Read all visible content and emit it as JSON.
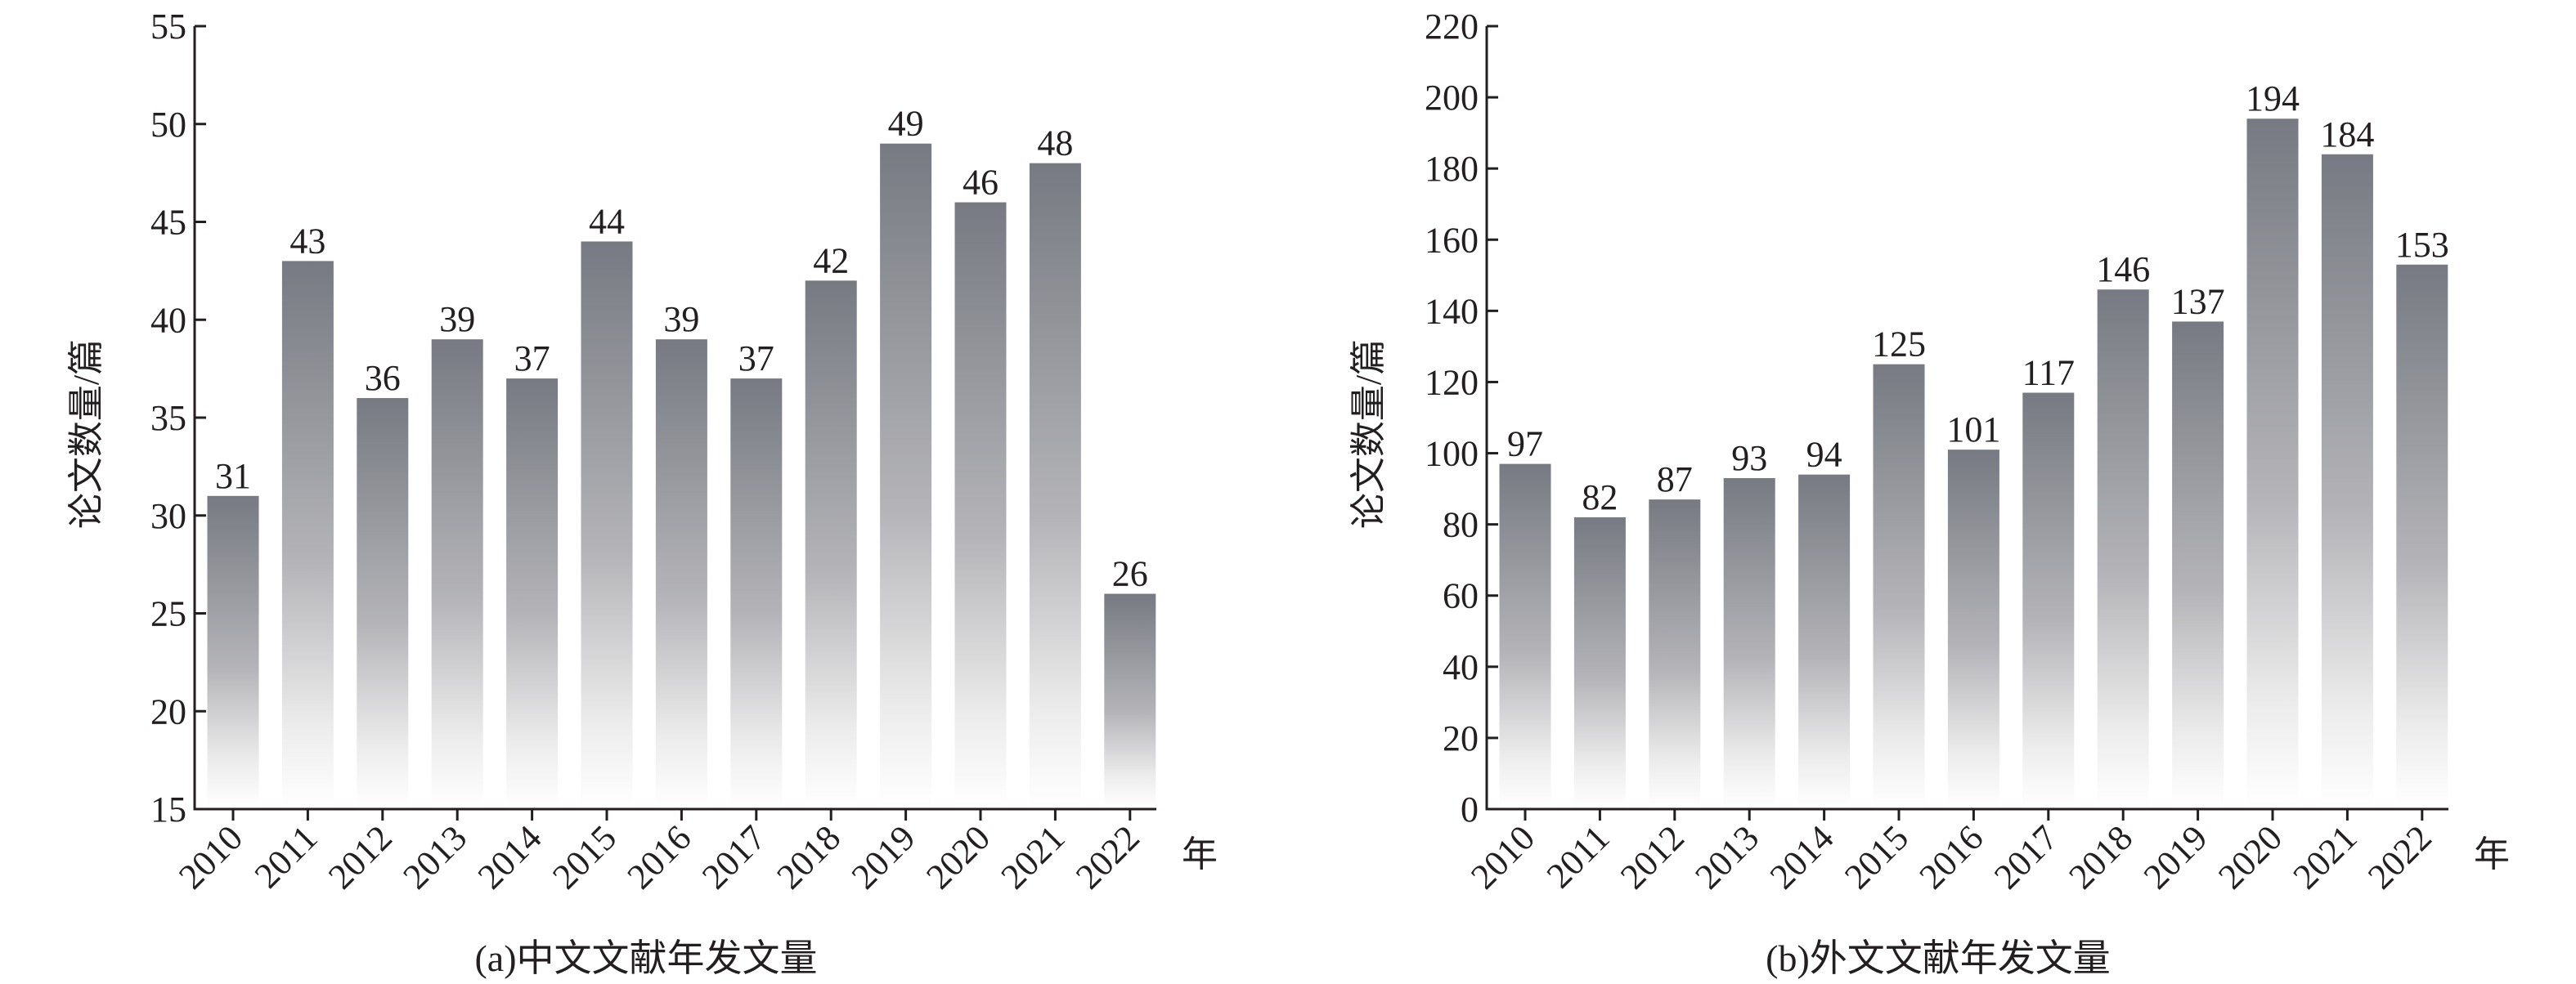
{
  "chart_data": [
    {
      "type": "bar",
      "caption": "(a)中文文献年发文量",
      "xlabel": "年",
      "ylabel": "论文数量/篇",
      "categories": [
        "2010",
        "2011",
        "2012",
        "2013",
        "2014",
        "2015",
        "2016",
        "2017",
        "2018",
        "2019",
        "2020",
        "2021",
        "2022"
      ],
      "values": [
        31,
        43,
        36,
        39,
        37,
        44,
        39,
        37,
        42,
        49,
        46,
        48,
        26
      ],
      "ylim": [
        15,
        55
      ],
      "yticks": [
        15,
        20,
        25,
        30,
        35,
        40,
        45,
        50,
        55
      ],
      "grid": false,
      "data_labels": true,
      "bar_color_top": "#777a82",
      "bar_color_bottom": "#ffffff"
    },
    {
      "type": "bar",
      "caption": "(b)外文文献年发文量",
      "xlabel": "年",
      "ylabel": "论文数量/篇",
      "categories": [
        "2010",
        "2011",
        "2012",
        "2013",
        "2014",
        "2015",
        "2016",
        "2017",
        "2018",
        "2019",
        "2020",
        "2021",
        "2022"
      ],
      "values": [
        97,
        82,
        87,
        93,
        94,
        125,
        101,
        117,
        146,
        137,
        194,
        184,
        153
      ],
      "ylim": [
        0,
        220
      ],
      "yticks": [
        0,
        20,
        40,
        60,
        80,
        100,
        120,
        140,
        160,
        180,
        200,
        220
      ],
      "grid": false,
      "data_labels": true,
      "bar_color_top": "#777a82",
      "bar_color_bottom": "#ffffff"
    }
  ]
}
